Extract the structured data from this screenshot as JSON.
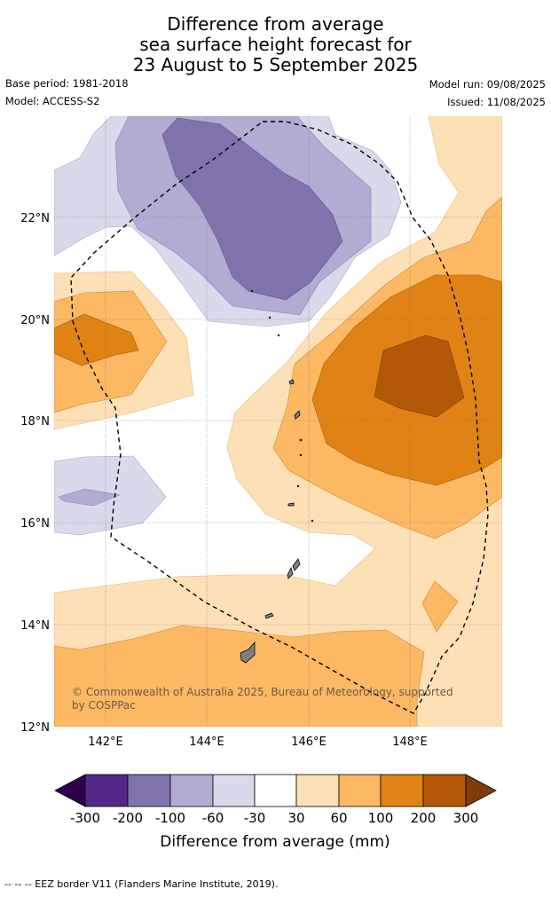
{
  "title": {
    "line1": "Difference from average",
    "line2": "sea surface height forecast for",
    "line3": "23 August to 5 September 2025"
  },
  "meta": {
    "base_period": "Base period: 1981-2018",
    "model": "Model: ACCESS-S2",
    "model_run": "Model run: 09/08/2025",
    "issued": "Issued: 11/08/2025"
  },
  "map": {
    "lat_labels": [
      "22°N",
      "20°N",
      "18°N",
      "16°N",
      "14°N",
      "12°N"
    ],
    "lon_labels": [
      "142°E",
      "144°E",
      "146°E",
      "148°E"
    ],
    "copyright_line1": "© Commonwealth of Australia 2025, Bureau of Meteorology, supported",
    "copyright_line2": "by COSPPac"
  },
  "colorbar": {
    "tick_labels": [
      "-300",
      "-200",
      "-100",
      "-60",
      "-30",
      "30",
      "60",
      "100",
      "200",
      "300"
    ],
    "label": "Difference from average (mm)",
    "colors": [
      "#2d004b",
      "#542788",
      "#8073ac",
      "#b2abd2",
      "#d8daeb",
      "#ffffff",
      "#fee0b6",
      "#fdb863",
      "#e08214",
      "#b35806",
      "#7f3b08"
    ]
  },
  "footer": {
    "legend": "--  --  -- EEZ border V11 (Flanders Marine Institute, 2019)."
  }
}
